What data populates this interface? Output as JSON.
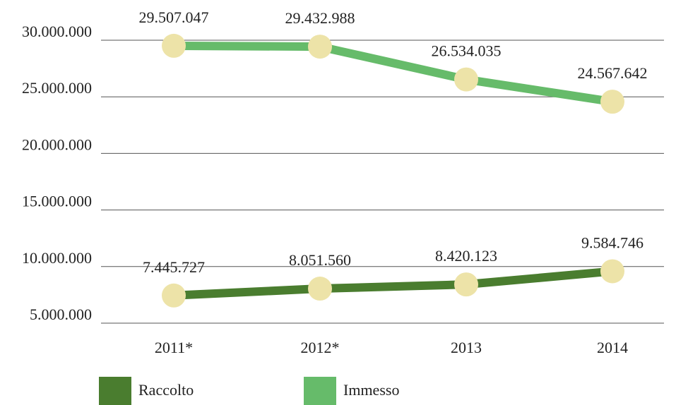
{
  "chart_data": {
    "type": "line",
    "categories": [
      "2011*",
      "2012*",
      "2013",
      "2014"
    ],
    "series": [
      {
        "name": "Raccolto",
        "color": "#4a7d2f",
        "values": [
          7445727,
          8051560,
          8420123,
          9584746
        ],
        "value_labels": [
          "7.445.727",
          "8.051.560",
          "8.420.123",
          "9.584.746"
        ]
      },
      {
        "name": "Immesso",
        "color": "#66bb6a",
        "values": [
          29507047,
          29432988,
          26534035,
          24567642
        ],
        "value_labels": [
          "29.507.047",
          "29.432.988",
          "26.534.035",
          "24.567.642"
        ]
      }
    ],
    "marker_color": "#ede3a8",
    "ylim": [
      5000000,
      30000000
    ],
    "yticks": [
      {
        "value": 5000000,
        "label": "5.000.000"
      },
      {
        "value": 10000000,
        "label": "10.000.000"
      },
      {
        "value": 15000000,
        "label": "15.000.000"
      },
      {
        "value": 20000000,
        "label": "20.000.000"
      },
      {
        "value": 25000000,
        "label": "25.000.000"
      },
      {
        "value": 30000000,
        "label": "30.000.000"
      }
    ],
    "grid": true,
    "legend": "bottom"
  }
}
